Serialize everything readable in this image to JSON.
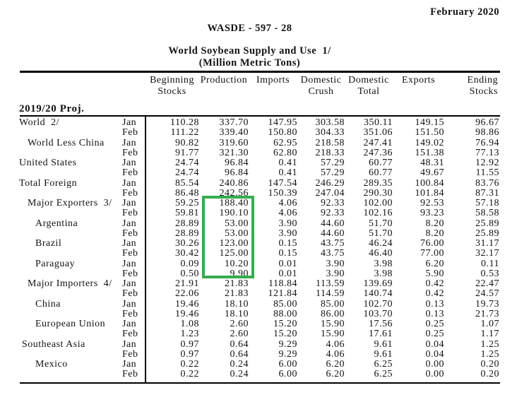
{
  "header": {
    "date": "February 2020",
    "report_id": "WASDE - 597 - 28",
    "title": "World Soybean Supply and Use  1/",
    "subtitle": "(Million Metric Tons)"
  },
  "table": {
    "section": "2019/20 Proj.",
    "columns": [
      {
        "line1": "Beginning",
        "line2": "Stocks"
      },
      {
        "line1": "Production",
        "line2": ""
      },
      {
        "line1": "Imports",
        "line2": ""
      },
      {
        "line1": "Domestic",
        "line2": "Crush"
      },
      {
        "line1": "Domestic",
        "line2": "Total"
      },
      {
        "line1": "Exports",
        "line2": ""
      },
      {
        "line1": "Ending",
        "line2": "Stocks"
      }
    ],
    "rows": [
      {
        "region": "World  2/",
        "indent": 0,
        "months": [
          {
            "m": "Jan",
            "v": [
              "110.28",
              "337.70",
              "147.95",
              "303.58",
              "350.11",
              "149.15",
              "96.67"
            ]
          },
          {
            "m": "Feb",
            "v": [
              "111.22",
              "339.40",
              "150.80",
              "304.33",
              "351.06",
              "151.50",
              "98.86"
            ]
          }
        ]
      },
      {
        "region": "World Less China",
        "indent": 1,
        "months": [
          {
            "m": "Jan",
            "v": [
              "90.82",
              "319.60",
              "62.95",
              "218.58",
              "247.41",
              "149.02",
              "76.94"
            ]
          },
          {
            "m": "Feb",
            "v": [
              "91.77",
              "321.30",
              "62.80",
              "218.33",
              "247.36",
              "151.38",
              "77.13"
            ]
          }
        ]
      },
      {
        "region": "United States",
        "indent": 0,
        "months": [
          {
            "m": "Jan",
            "v": [
              "24.74",
              "96.84",
              "0.41",
              "57.29",
              "60.77",
              "48.31",
              "12.92"
            ]
          },
          {
            "m": "Feb",
            "v": [
              "24.74",
              "96.84",
              "0.41",
              "57.29",
              "60.77",
              "49.67",
              "11.55"
            ]
          }
        ]
      },
      {
        "region": "Total Foreign",
        "indent": 0,
        "months": [
          {
            "m": "Jan",
            "v": [
              "85.54",
              "240.86",
              "147.54",
              "246.29",
              "289.35",
              "100.84",
              "83.76"
            ]
          },
          {
            "m": "Feb",
            "v": [
              "86.48",
              "242.56",
              "150.39",
              "247.04",
              "290.30",
              "101.84",
              "87.31"
            ]
          }
        ]
      },
      {
        "region": "Major Exporters  3/",
        "indent": 1,
        "months": [
          {
            "m": "Jan",
            "v": [
              "59.25",
              "188.40",
              "4.06",
              "92.33",
              "102.00",
              "92.53",
              "57.18"
            ]
          },
          {
            "m": "Feb",
            "v": [
              "59.81",
              "190.10",
              "4.06",
              "92.33",
              "102.16",
              "93.23",
              "58.58"
            ]
          }
        ]
      },
      {
        "region": "Argentina",
        "indent": 2,
        "months": [
          {
            "m": "Jan",
            "v": [
              "28.89",
              "53.00",
              "3.90",
              "44.60",
              "51.70",
              "8.20",
              "25.89"
            ]
          },
          {
            "m": "Feb",
            "v": [
              "28.89",
              "53.00",
              "3.90",
              "44.60",
              "51.70",
              "8.20",
              "25.89"
            ]
          }
        ]
      },
      {
        "region": "Brazil",
        "indent": 2,
        "months": [
          {
            "m": "Jan",
            "v": [
              "30.26",
              "123.00",
              "0.15",
              "43.75",
              "46.24",
              "76.00",
              "31.17"
            ]
          },
          {
            "m": "Feb",
            "v": [
              "30.42",
              "125.00",
              "0.15",
              "43.75",
              "46.40",
              "77.00",
              "32.17"
            ]
          }
        ]
      },
      {
        "region": "Paraguay",
        "indent": 2,
        "months": [
          {
            "m": "Jan",
            "v": [
              "0.09",
              "10.20",
              "0.01",
              "3.90",
              "3.98",
              "6.20",
              "0.11"
            ]
          },
          {
            "m": "Feb",
            "v": [
              "0.50",
              "9.90",
              "0.01",
              "3.90",
              "3.98",
              "5.90",
              "0.53"
            ]
          }
        ]
      },
      {
        "region": "Major Importers  4/",
        "indent": 1,
        "months": [
          {
            "m": "Jan",
            "v": [
              "21.91",
              "21.83",
              "118.84",
              "113.59",
              "139.69",
              "0.42",
              "22.47"
            ]
          },
          {
            "m": "Feb",
            "v": [
              "22.06",
              "21.83",
              "121.84",
              "114.59",
              "140.74",
              "0.42",
              "24.57"
            ]
          }
        ]
      },
      {
        "region": "China",
        "indent": 2,
        "months": [
          {
            "m": "Jan",
            "v": [
              "19.46",
              "18.10",
              "85.00",
              "85.00",
              "102.70",
              "0.13",
              "19.73"
            ]
          },
          {
            "m": "Feb",
            "v": [
              "19.46",
              "18.10",
              "88.00",
              "86.00",
              "103.70",
              "0.13",
              "21.73"
            ]
          }
        ]
      },
      {
        "region": "European Union",
        "indent": 2,
        "months": [
          {
            "m": "Jan",
            "v": [
              "1.08",
              "2.60",
              "15.20",
              "15.90",
              "17.56",
              "0.25",
              "1.07"
            ]
          },
          {
            "m": "Feb",
            "v": [
              "1.23",
              "2.60",
              "15.20",
              "15.90",
              "17.61",
              "0.25",
              "1.17"
            ]
          }
        ]
      },
      {
        "region": "Southeast Asia",
        "indent": 3,
        "months": [
          {
            "m": "Jan",
            "v": [
              "0.97",
              "0.64",
              "9.29",
              "4.06",
              "9.61",
              "0.04",
              "1.25"
            ]
          },
          {
            "m": "Feb",
            "v": [
              "0.97",
              "0.64",
              "9.29",
              "4.06",
              "9.61",
              "0.04",
              "1.25"
            ]
          }
        ]
      },
      {
        "region": "Mexico",
        "indent": 2,
        "months": [
          {
            "m": "Jan",
            "v": [
              "0.22",
              "0.24",
              "6.00",
              "6.20",
              "6.25",
              "0.00",
              "0.20"
            ]
          },
          {
            "m": "Feb",
            "v": [
              "0.22",
              "0.24",
              "6.00",
              "6.20",
              "6.25",
              "0.00",
              "0.20"
            ]
          }
        ]
      }
    ]
  },
  "highlight": {
    "color": "#35AD50",
    "column": "Production",
    "column_index": 1,
    "first_row_index": 8,
    "last_row_index": 15
  }
}
